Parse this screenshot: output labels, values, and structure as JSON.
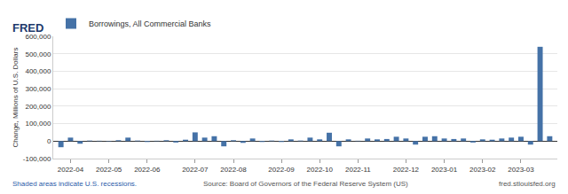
{
  "chart_data": {
    "type": "bar",
    "y_label": "Change, Millions of U.S. Dollars",
    "annotations": [
      "FRED",
      "Shaded areas indicate U.S. recessions.",
      "Source: Board of Governors of the Federal Reserve System (US)",
      "fred.stlouisfed.org"
    ],
    "categories": [
      null,
      "2022-04",
      null,
      null,
      null,
      "2022-05",
      null,
      null,
      null,
      "2022-06",
      null,
      null,
      null,
      null,
      "2022-07",
      null,
      null,
      null,
      "2022-08",
      null,
      null,
      null,
      null,
      "2022-09",
      null,
      null,
      null,
      "2022-10",
      null,
      null,
      null,
      "2022-11",
      null,
      null,
      null,
      null,
      "2022-12",
      null,
      null,
      null,
      "2023-01",
      null,
      null,
      null,
      "2023-02",
      null,
      null,
      null,
      "2023-03",
      null,
      null,
      null
    ],
    "series": [
      {
        "name": "Borrowings, All Commercial Banks",
        "color": "#4572a7",
        "values": [
          -35000,
          20000,
          -15000,
          3000,
          2000,
          -2000,
          5000,
          20000,
          3000,
          -5000,
          2000,
          5000,
          -8000,
          8000,
          50000,
          20000,
          28000,
          -30000,
          5000,
          -10000,
          15000,
          -5000,
          3000,
          -5000,
          10000,
          3000,
          20000,
          10000,
          48000,
          -30000,
          10000,
          2000,
          15000,
          10000,
          12000,
          25000,
          15000,
          -20000,
          25000,
          28000,
          15000,
          12000,
          15000,
          -8000,
          10000,
          8000,
          15000,
          20000,
          25000,
          -20000,
          540000,
          28000
        ]
      }
    ],
    "ylim": [
      -100000,
      600000
    ],
    "yticks": [
      {
        "value": -100000,
        "label": "-100,000"
      },
      0,
      {
        "value": 100000,
        "label": "100,000"
      },
      {
        "value": 200000,
        "label": "200,000"
      },
      {
        "value": 300000,
        "label": "300,000"
      },
      {
        "value": 400000,
        "label": "400,000"
      },
      {
        "value": 500000,
        "label": "500,000"
      },
      {
        "value": 600000,
        "label": "600,000"
      }
    ],
    "grid": true,
    "legend": "top left"
  }
}
